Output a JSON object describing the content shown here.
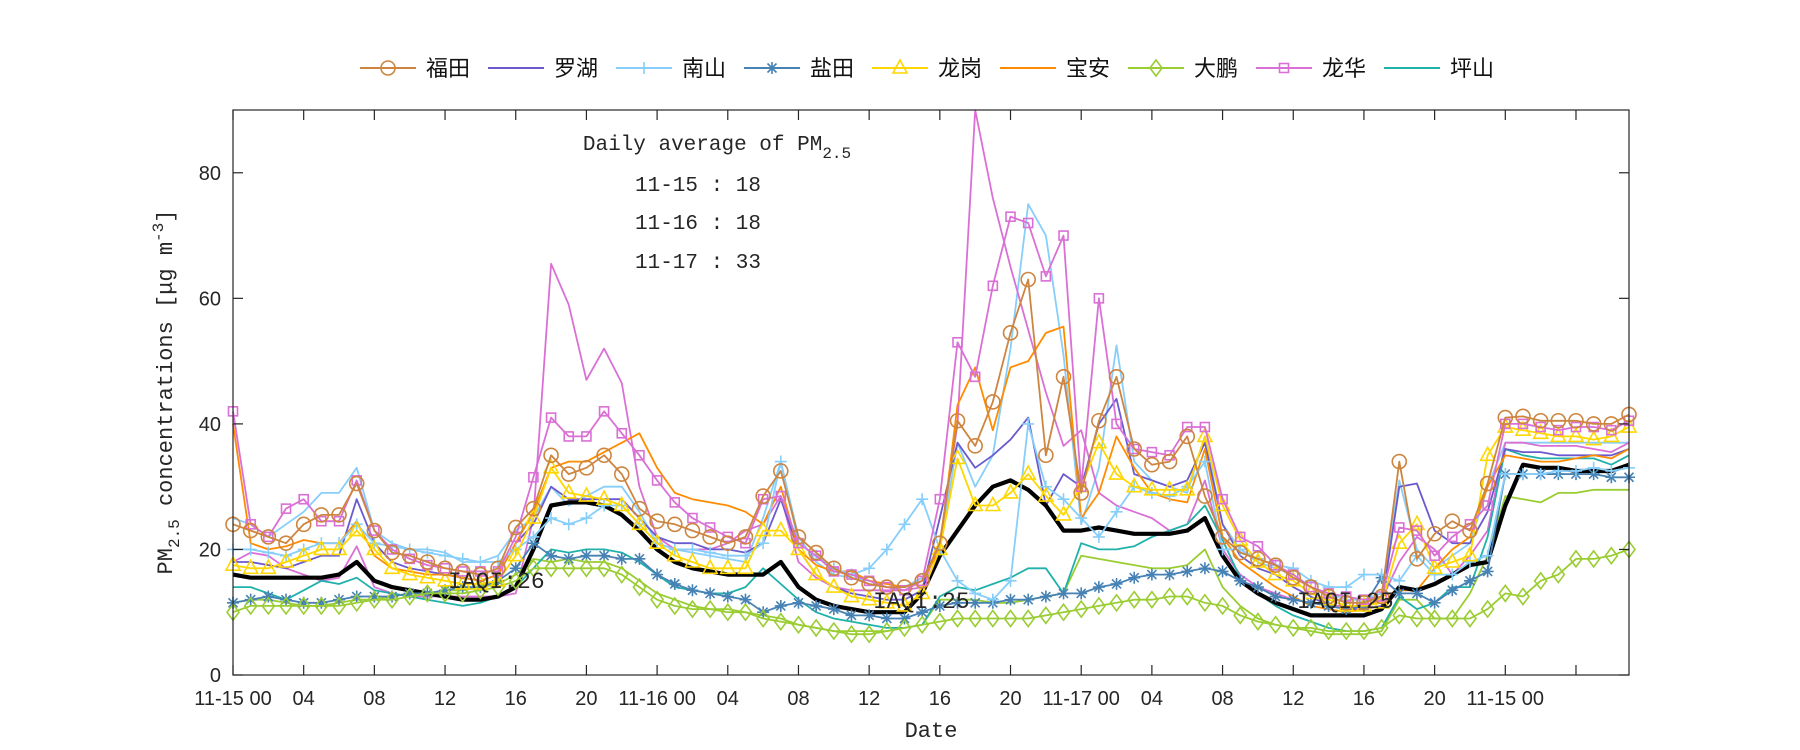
{
  "chart_data": {
    "type": "line",
    "xlabel": "Date",
    "ylabel": {
      "prefix": "PM",
      "sub": "2.5",
      "mid": " concentrations [μg m",
      "sup": "-3",
      "suffix": "]"
    },
    "ylim": [
      0,
      90
    ],
    "yticks": [
      0,
      20,
      40,
      60,
      80
    ],
    "xlim": [
      0,
      79
    ],
    "xtick_hours": [
      0,
      4,
      8,
      12,
      16,
      20,
      24,
      28,
      32,
      36,
      40,
      44,
      48,
      52,
      56,
      60,
      64,
      68,
      72,
      76
    ],
    "xtick_labels": [
      "11-15 00",
      "04",
      "08",
      "12",
      "16",
      "20",
      "11-16 00",
      "04",
      "08",
      "12",
      "16",
      "20",
      "11-17 00",
      "04",
      "08",
      "12",
      "16",
      "20",
      "11-15 00",
      ""
    ],
    "grid": false,
    "legend_placement": "top-outside",
    "box": {
      "title_prefix": "Daily average of PM",
      "title_sub": "2.5",
      "lines": [
        "11-15 : 18",
        "11-16 : 18",
        "11-17 : 33"
      ]
    },
    "annotations": [
      "IAQI:26",
      "IAQI:25",
      "IAQI:25"
    ],
    "series": [
      {
        "color": "#87CEFA",
        "marker": "none",
        "values": [
          25,
          24,
          22,
          24,
          26,
          29,
          29,
          33,
          23,
          21,
          20,
          20,
          19.5,
          18,
          18,
          19,
          23,
          25,
          30,
          27,
          28.5,
          30,
          30,
          26,
          21,
          20,
          19.5,
          19,
          18.5,
          18,
          25,
          34,
          22,
          18,
          16,
          15.5,
          15,
          14.5,
          14,
          15.5,
          20,
          37,
          30,
          35,
          52,
          75,
          70,
          51,
          24,
          33,
          52.5,
          34,
          31,
          30,
          29,
          38,
          24,
          20,
          18,
          17,
          16,
          14,
          13,
          12,
          12,
          13,
          31,
          20,
          17,
          19,
          21,
          30,
          37,
          37,
          37,
          37,
          37,
          37,
          37,
          37
        ]
      },
      {
        "color": "#DA70D6",
        "marker": "none",
        "values": [
          18,
          19.5,
          19,
          17,
          16,
          15,
          15.5,
          20.5,
          14,
          13,
          12.5,
          12.5,
          12.5,
          12.5,
          12.5,
          12.5,
          13,
          25,
          65.5,
          59,
          47,
          52,
          46.5,
          30,
          22,
          20,
          20,
          20,
          21,
          23,
          24,
          28.5,
          18,
          15.5,
          14,
          13.5,
          13.5,
          13.5,
          13.5,
          14,
          21,
          40,
          90,
          76,
          65,
          55,
          45,
          36.5,
          39,
          29,
          27,
          26,
          25,
          23,
          24,
          31,
          20,
          16,
          14,
          13,
          12,
          11.5,
          11,
          11,
          11,
          12,
          18,
          22,
          20,
          16,
          19,
          23,
          37,
          37,
          36.5,
          36.5,
          36.5,
          36,
          35.5,
          37
        ]
      },
      {
        "color": "#9ACD32",
        "marker": "none",
        "values": [
          11.5,
          12,
          12,
          11.5,
          11,
          11,
          11.5,
          12,
          12,
          12.5,
          13,
          13,
          13.5,
          13.5,
          14,
          14.5,
          16,
          18.5,
          18,
          18.5,
          18,
          18,
          17,
          15,
          13,
          12,
          11,
          10.5,
          10.5,
          10,
          9.5,
          9,
          8,
          7.5,
          7,
          7,
          7,
          7,
          7.5,
          8,
          12,
          12,
          12,
          11.5,
          11.5,
          12,
          12.5,
          13,
          19,
          18.5,
          18,
          17.5,
          17,
          17,
          17.5,
          20,
          14,
          11,
          9,
          8,
          7.5,
          7,
          6.5,
          6.5,
          6.5,
          7,
          12,
          12,
          9,
          9,
          13,
          19,
          28.5,
          28,
          27.5,
          29,
          29,
          29.5,
          29.5,
          29.5
        ]
      },
      {
        "name": "坪山",
        "color": "#20B2AA",
        "marker": "none",
        "values": [
          14,
          14,
          13,
          12,
          13.5,
          15,
          14.5,
          15.5,
          13.5,
          13,
          12.5,
          12,
          11.5,
          11,
          11.5,
          12.5,
          14,
          17,
          20,
          19.5,
          20,
          20,
          19.5,
          18,
          16,
          14,
          13.5,
          13,
          13,
          14,
          17,
          14.5,
          12,
          10,
          9,
          8.5,
          8,
          7.5,
          7.5,
          8,
          12.5,
          14,
          13.5,
          14.5,
          15.5,
          17,
          17,
          13,
          21,
          20,
          20,
          20.5,
          22,
          23,
          24,
          27,
          21.5,
          15.5,
          13,
          11,
          9.5,
          8.5,
          7.5,
          7,
          7,
          7.5,
          12.5,
          10.5,
          11.5,
          14,
          14,
          22,
          36,
          35,
          34.5,
          34.5,
          34.5,
          34.5,
          33.5,
          35
        ]
      },
      {
        "name": "罗湖",
        "color": "#6A5ACD",
        "marker": "none",
        "values": [
          18,
          18,
          17.5,
          17,
          18,
          19,
          19,
          28,
          21,
          18,
          17,
          16.5,
          16,
          15.5,
          15,
          16,
          21,
          24,
          30,
          28,
          28,
          28,
          28,
          25,
          22,
          21,
          21,
          20,
          20,
          19.5,
          21,
          28,
          20,
          16,
          14,
          13,
          12.5,
          12,
          12,
          13.5,
          25,
          37,
          33,
          35,
          37.5,
          41,
          27,
          32,
          30,
          40,
          44,
          32,
          31,
          30,
          31,
          37,
          24,
          19,
          17,
          16,
          14,
          12.5,
          11,
          10.5,
          10.5,
          11,
          30,
          30.5,
          23,
          21,
          21,
          26,
          36,
          35.5,
          35.5,
          35,
          35,
          35,
          35,
          36
        ]
      },
      {
        "name": "宝安",
        "color": "#FF8C00",
        "marker": "none",
        "values": [
          40,
          21,
          20,
          20.5,
          21.5,
          21,
          21,
          24.5,
          19,
          17,
          16.5,
          16,
          16,
          15.5,
          15,
          16,
          21,
          26,
          33,
          34,
          34,
          35.5,
          37,
          38.5,
          33,
          29,
          28,
          27.5,
          27,
          26,
          24,
          30,
          20,
          17.5,
          16.5,
          16.5,
          15,
          14.5,
          14,
          15,
          20,
          43,
          49,
          39,
          49,
          50,
          54.5,
          55.5,
          25,
          29,
          38,
          33,
          29,
          28,
          27.5,
          36,
          22,
          18,
          16,
          14,
          12.5,
          11,
          10.5,
          10,
          10.5,
          12.5,
          13.5,
          13.5,
          17,
          20,
          22,
          30,
          35,
          34.5,
          34,
          34,
          34.5,
          35,
          34.5,
          36
        ]
      },
      {
        "color": "#000000",
        "marker": "none",
        "thick": true,
        "values": [
          16,
          15.5,
          15.5,
          15.5,
          15.5,
          15.5,
          16,
          18,
          15,
          14,
          13.5,
          13,
          12.5,
          12,
          12,
          12.5,
          14,
          20,
          27,
          27.5,
          27.5,
          27,
          25.5,
          23,
          20,
          18,
          17,
          16.5,
          16,
          16,
          16,
          18,
          14,
          12,
          11,
          10.5,
          10,
          10,
          10,
          13,
          19,
          23,
          27,
          30,
          31,
          29.5,
          27,
          23,
          23,
          23.5,
          23,
          22.5,
          22.5,
          22.5,
          23,
          25,
          19,
          15,
          13,
          11.5,
          10.5,
          9.5,
          9.5,
          9.5,
          9.5,
          10.5,
          14,
          13.5,
          14.5,
          16,
          17.5,
          18,
          27,
          33.5,
          33,
          33,
          32.5,
          32.5,
          32.5,
          33.5
        ]
      },
      {
        "name": "盐田",
        "color": "#4682B4",
        "marker": "star",
        "values": [
          11.5,
          12,
          12.5,
          12,
          11.5,
          11.5,
          12,
          12.5,
          12.5,
          12.5,
          13,
          13,
          13.5,
          14,
          14,
          15,
          17,
          21,
          19,
          18.5,
          19,
          19,
          18.5,
          18.5,
          16,
          14.5,
          13.5,
          13,
          12.5,
          12,
          10,
          11,
          11.5,
          11,
          10.5,
          9.5,
          9.5,
          9,
          9,
          10,
          11,
          11.5,
          11.5,
          11.5,
          12,
          12,
          12.5,
          13,
          13,
          14,
          14.5,
          15.5,
          16,
          16,
          16.5,
          17,
          16.5,
          15,
          14,
          12.5,
          12,
          11.5,
          11,
          10.5,
          11,
          15.5,
          13,
          13,
          11.5,
          13.5,
          15,
          16.5,
          32,
          32,
          32,
          32,
          32,
          32,
          31.5,
          31.5
        ]
      },
      {
        "name": "大鹏",
        "color": "#9ACD32",
        "marker": "diamond",
        "values": [
          10,
          11,
          11,
          11,
          11,
          11,
          11,
          11.5,
          12,
          12,
          12.5,
          13,
          13,
          13,
          13.5,
          14,
          15,
          17,
          17,
          17,
          17,
          17,
          16,
          14,
          12,
          11,
          10.5,
          10.5,
          10,
          10,
          9,
          8.5,
          8,
          7.5,
          7,
          6.5,
          6.5,
          7,
          7.5,
          8,
          8.5,
          9,
          9,
          9,
          9,
          9,
          9.5,
          10,
          10.5,
          11,
          11.5,
          12,
          12,
          12.5,
          12.5,
          11.5,
          11,
          9.5,
          8.5,
          8,
          7.5,
          7.5,
          7,
          7,
          7,
          7.5,
          9.5,
          9,
          9,
          9,
          9,
          10.5,
          13,
          12.5,
          15,
          16,
          18.5,
          18.5,
          19,
          20
        ]
      },
      {
        "name": "南山",
        "color": "#87CEFA",
        "marker": "plus",
        "values": [
          20,
          20,
          19.5,
          19,
          20,
          21,
          21,
          24,
          21,
          20.5,
          20,
          19.5,
          19,
          18.5,
          18,
          18,
          20,
          22,
          25,
          24,
          25,
          27,
          27,
          24,
          21,
          20,
          20,
          19.5,
          19,
          19,
          21,
          34,
          21,
          19,
          17,
          16,
          17,
          20,
          24,
          28,
          20,
          15,
          13,
          12,
          15,
          40,
          30,
          28,
          25,
          22,
          26,
          30,
          29,
          28.5,
          30,
          34,
          20,
          20,
          18.5,
          17.5,
          17,
          15,
          14,
          14,
          16,
          16,
          15,
          19,
          16,
          16,
          18,
          19,
          32,
          32,
          32,
          32.5,
          32.5,
          33,
          32.5,
          33
        ]
      },
      {
        "name": "龙岗",
        "color": "#FFD700",
        "marker": "triangle",
        "values": [
          17.5,
          17,
          17,
          18,
          19,
          20,
          20,
          23,
          20,
          17,
          16,
          15.5,
          15,
          14.5,
          14.5,
          15,
          19,
          25,
          33,
          29,
          28.5,
          28,
          27,
          24,
          21,
          19,
          18,
          17,
          17,
          17,
          23,
          23,
          20,
          16,
          14,
          12.5,
          12,
          11.5,
          11,
          13,
          20,
          34.5,
          27,
          27,
          29,
          32,
          28.5,
          25.5,
          30,
          37,
          32,
          30,
          29.5,
          29.5,
          29.5,
          38,
          27,
          21.5,
          18,
          16,
          15,
          13,
          12,
          11,
          11,
          11.5,
          21,
          24,
          17,
          18,
          19,
          35,
          39.5,
          39,
          38.5,
          38,
          38,
          37.5,
          38,
          39.5
        ]
      },
      {
        "name": "龙华",
        "color": "#DA70D6",
        "marker": "square",
        "values": [
          42,
          24,
          22,
          26.5,
          28,
          24.5,
          24.5,
          31,
          23,
          20,
          18.5,
          17.5,
          17,
          16.5,
          16.5,
          16.5,
          22,
          31.5,
          41,
          38,
          38,
          42,
          38.5,
          35,
          31,
          27.5,
          25,
          23.5,
          22,
          21,
          28,
          28.5,
          21,
          19,
          16.5,
          16,
          15,
          14,
          13.5,
          15,
          28,
          53,
          47.5,
          62,
          73,
          72,
          63.5,
          70,
          30,
          60,
          40,
          36,
          35.5,
          35,
          39.5,
          39.5,
          28,
          22,
          20.5,
          17.5,
          16,
          14,
          13,
          12.5,
          12,
          12.5,
          23.5,
          23,
          19,
          22,
          24,
          27,
          40,
          40,
          39.5,
          39,
          39.5,
          39.5,
          39,
          40.5
        ]
      },
      {
        "name": "福田",
        "color": "#CD853F",
        "marker": "circle",
        "values": [
          24,
          23,
          22,
          21,
          24,
          25.5,
          25.5,
          30.5,
          23,
          19.5,
          19,
          18,
          17,
          16.5,
          16,
          17,
          23.5,
          26.5,
          35,
          32,
          33,
          35,
          32,
          26.5,
          24.5,
          24,
          23,
          22,
          21,
          22,
          28.5,
          32.5,
          22,
          19.5,
          17,
          15.5,
          14.5,
          14,
          14,
          15,
          21,
          40.5,
          36.5,
          43.5,
          54.5,
          63,
          35,
          47.5,
          29,
          40.5,
          47.5,
          36,
          33.5,
          34,
          38,
          28.5,
          22,
          19.5,
          18.5,
          17.5,
          15.5,
          14,
          12.5,
          11.5,
          11.5,
          12.5,
          34,
          18.5,
          22.5,
          24.5,
          23,
          30.5,
          41,
          41.2,
          40.5,
          40.5,
          40.5,
          40,
          40,
          41.5
        ]
      }
    ],
    "legend_order": [
      "福田",
      "罗湖",
      "南山",
      "盐田",
      "龙岗",
      "宝安",
      "大鹏",
      "龙华",
      "坪山"
    ]
  }
}
